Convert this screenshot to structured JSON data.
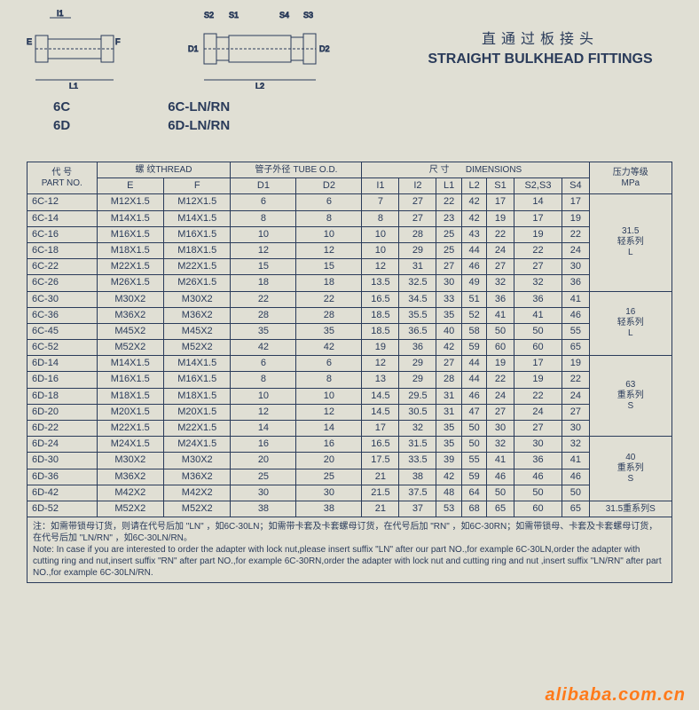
{
  "title": {
    "cn": "直通过板接头",
    "en": "STRAIGHT BULKHEAD FITTINGS"
  },
  "diagrams": {
    "left": {
      "labels": {
        "I1": "I1",
        "E": "E",
        "F": "F",
        "L1": "L1"
      },
      "models": [
        "6C",
        "6D"
      ]
    },
    "right": {
      "labels": {
        "S2": "S2",
        "S1": "S1",
        "S4": "S4",
        "S3": "S3",
        "D1": "D1",
        "D2": "D2",
        "L2": "L2"
      },
      "models": [
        "6C-LN/RN",
        "6D-LN/RN"
      ]
    }
  },
  "table": {
    "headers": {
      "part_no": {
        "cn": "代 号",
        "en": "PART NO."
      },
      "thread": {
        "cn": "螺  纹",
        "en": "THREAD",
        "sub": [
          "E",
          "F"
        ]
      },
      "tube_od": {
        "cn": "管子外径",
        "en": "TUBE O.D.",
        "sub": [
          "D1",
          "D2"
        ]
      },
      "dimensions": {
        "cn": "尺 寸",
        "en": "DIMENSIONS",
        "sub": [
          "I1",
          "I2",
          "L1",
          "L2",
          "S1",
          "S2,S3",
          "S4"
        ]
      },
      "pressure": {
        "cn": "压力等级",
        "en": "MPa"
      }
    },
    "pressure_groups": [
      {
        "label_num": "31.5",
        "label_cn": "轻系列",
        "label_letter": "L",
        "rowspan": 6
      },
      {
        "label_num": "16",
        "label_cn": "轻系列",
        "label_letter": "L",
        "rowspan": 4
      },
      {
        "label_num": "63",
        "label_cn": "重系列",
        "label_letter": "S",
        "rowspan": 5
      },
      {
        "label_num": "40",
        "label_cn": "重系列",
        "label_letter": "S",
        "rowspan": 4
      },
      {
        "label_num": "31.5",
        "label_cn": "重系列S",
        "label_letter": "",
        "rowspan": 1
      }
    ],
    "rows": [
      {
        "pn": "6C-12",
        "e": "M12X1.5",
        "f": "M12X1.5",
        "d1": "6",
        "d2": "6",
        "i1": "7",
        "i2": "27",
        "l1": "22",
        "l2": "42",
        "s1": "17",
        "s23": "14",
        "s4": "17",
        "pg": 0
      },
      {
        "pn": "6C-14",
        "e": "M14X1.5",
        "f": "M14X1.5",
        "d1": "8",
        "d2": "8",
        "i1": "8",
        "i2": "27",
        "l1": "23",
        "l2": "42",
        "s1": "19",
        "s23": "17",
        "s4": "19",
        "pg": 0
      },
      {
        "pn": "6C-16",
        "e": "M16X1.5",
        "f": "M16X1.5",
        "d1": "10",
        "d2": "10",
        "i1": "10",
        "i2": "28",
        "l1": "25",
        "l2": "43",
        "s1": "22",
        "s23": "19",
        "s4": "22",
        "pg": 0
      },
      {
        "pn": "6C-18",
        "e": "M18X1.5",
        "f": "M18X1.5",
        "d1": "12",
        "d2": "12",
        "i1": "10",
        "i2": "29",
        "l1": "25",
        "l2": "44",
        "s1": "24",
        "s23": "22",
        "s4": "24",
        "pg": 0
      },
      {
        "pn": "6C-22",
        "e": "M22X1.5",
        "f": "M22X1.5",
        "d1": "15",
        "d2": "15",
        "i1": "12",
        "i2": "31",
        "l1": "27",
        "l2": "46",
        "s1": "27",
        "s23": "27",
        "s4": "30",
        "pg": 0
      },
      {
        "pn": "6C-26",
        "e": "M26X1.5",
        "f": "M26X1.5",
        "d1": "18",
        "d2": "18",
        "i1": "13.5",
        "i2": "32.5",
        "l1": "30",
        "l2": "49",
        "s1": "32",
        "s23": "32",
        "s4": "36",
        "pg": 0
      },
      {
        "pn": "6C-30",
        "e": "M30X2",
        "f": "M30X2",
        "d1": "22",
        "d2": "22",
        "i1": "16.5",
        "i2": "34.5",
        "l1": "33",
        "l2": "51",
        "s1": "36",
        "s23": "36",
        "s4": "41",
        "pg": 1
      },
      {
        "pn": "6C-36",
        "e": "M36X2",
        "f": "M36X2",
        "d1": "28",
        "d2": "28",
        "i1": "18.5",
        "i2": "35.5",
        "l1": "35",
        "l2": "52",
        "s1": "41",
        "s23": "41",
        "s4": "46",
        "pg": 1
      },
      {
        "pn": "6C-45",
        "e": "M45X2",
        "f": "M45X2",
        "d1": "35",
        "d2": "35",
        "i1": "18.5",
        "i2": "36.5",
        "l1": "40",
        "l2": "58",
        "s1": "50",
        "s23": "50",
        "s4": "55",
        "pg": 1
      },
      {
        "pn": "6C-52",
        "e": "M52X2",
        "f": "M52X2",
        "d1": "42",
        "d2": "42",
        "i1": "19",
        "i2": "36",
        "l1": "42",
        "l2": "59",
        "s1": "60",
        "s23": "60",
        "s4": "65",
        "pg": 1
      },
      {
        "pn": "6D-14",
        "e": "M14X1.5",
        "f": "M14X1.5",
        "d1": "6",
        "d2": "6",
        "i1": "12",
        "i2": "29",
        "l1": "27",
        "l2": "44",
        "s1": "19",
        "s23": "17",
        "s4": "19",
        "pg": 2
      },
      {
        "pn": "6D-16",
        "e": "M16X1.5",
        "f": "M16X1.5",
        "d1": "8",
        "d2": "8",
        "i1": "13",
        "i2": "29",
        "l1": "28",
        "l2": "44",
        "s1": "22",
        "s23": "19",
        "s4": "22",
        "pg": 2
      },
      {
        "pn": "6D-18",
        "e": "M18X1.5",
        "f": "M18X1.5",
        "d1": "10",
        "d2": "10",
        "i1": "14.5",
        "i2": "29.5",
        "l1": "31",
        "l2": "46",
        "s1": "24",
        "s23": "22",
        "s4": "24",
        "pg": 2
      },
      {
        "pn": "6D-20",
        "e": "M20X1.5",
        "f": "M20X1.5",
        "d1": "12",
        "d2": "12",
        "i1": "14.5",
        "i2": "30.5",
        "l1": "31",
        "l2": "47",
        "s1": "27",
        "s23": "24",
        "s4": "27",
        "pg": 2
      },
      {
        "pn": "6D-22",
        "e": "M22X1.5",
        "f": "M22X1.5",
        "d1": "14",
        "d2": "14",
        "i1": "17",
        "i2": "32",
        "l1": "35",
        "l2": "50",
        "s1": "30",
        "s23": "27",
        "s4": "30",
        "pg": 2
      },
      {
        "pn": "6D-24",
        "e": "M24X1.5",
        "f": "M24X1.5",
        "d1": "16",
        "d2": "16",
        "i1": "16.5",
        "i2": "31.5",
        "l1": "35",
        "l2": "50",
        "s1": "32",
        "s23": "30",
        "s4": "32",
        "pg": 3
      },
      {
        "pn": "6D-30",
        "e": "M30X2",
        "f": "M30X2",
        "d1": "20",
        "d2": "20",
        "i1": "17.5",
        "i2": "33.5",
        "l1": "39",
        "l2": "55",
        "s1": "41",
        "s23": "36",
        "s4": "41",
        "pg": 3
      },
      {
        "pn": "6D-36",
        "e": "M36X2",
        "f": "M36X2",
        "d1": "25",
        "d2": "25",
        "i1": "21",
        "i2": "38",
        "l1": "42",
        "l2": "59",
        "s1": "46",
        "s23": "46",
        "s4": "46",
        "pg": 3
      },
      {
        "pn": "6D-42",
        "e": "M42X2",
        "f": "M42X2",
        "d1": "30",
        "d2": "30",
        "i1": "21.5",
        "i2": "37.5",
        "l1": "48",
        "l2": "64",
        "s1": "50",
        "s23": "50",
        "s4": "50",
        "pg": 3
      },
      {
        "pn": "6D-52",
        "e": "M52X2",
        "f": "M52X2",
        "d1": "38",
        "d2": "38",
        "i1": "21",
        "i2": "37",
        "l1": "53",
        "l2": "68",
        "s1": "65",
        "s23": "60",
        "s4": "65",
        "pg": 4
      }
    ]
  },
  "notes": {
    "cn": "注：如需带锁母订货，则请在代号后加 \"LN\" ，如6C-30LN；如需带卡套及卡套螺母订货，在代号后加 \"RN\" ，如6C-30RN；如需带锁母、卡套及卡套螺母订货，在代号后加 \"LN/RN\" ，如6C-30LN/RN。",
    "en": "Note: In case if you are interested to order the adapter with lock nut,please insert suffix \"LN\" after our part NO.,for example 6C-30LN,order the adapter with cutting ring and nut,insert suffix \"RN\" after part NO.,for example 6C-30RN,order the adapter with lock nut and cutting ring and nut ,insert suffix \"LN/RN\" after part NO.,for example 6C-30LN/RN."
  },
  "watermark": "alibaba.com.cn",
  "style": {
    "bg_color": "#e0dfd4",
    "ink_color": "#2a3b5a",
    "watermark_color": "#ff7a1a",
    "table_font_size": 11
  }
}
